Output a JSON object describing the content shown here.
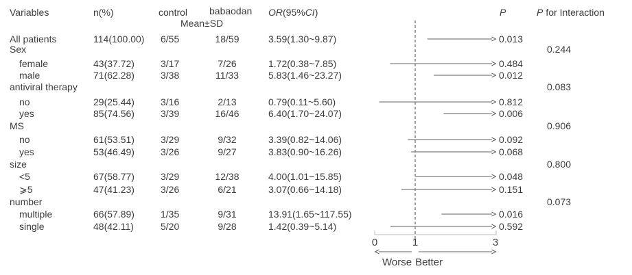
{
  "chart_data": {
    "type": "scatter",
    "subtype": "forest-plot",
    "columns": {
      "variables": "Variables",
      "n_pct": "n(%)",
      "control": "control",
      "babaodan": "babaodan",
      "mean_sd": "Mean±SD",
      "or_parts": {
        "or": "OR",
        "mid": "(95%",
        "ci": "CI",
        "close": ")"
      },
      "p": "P",
      "p_interaction_parts": {
        "p": "P",
        "rest": "for Interaction"
      }
    },
    "x_axis": {
      "tick_labels": [
        "0",
        "1",
        "3"
      ],
      "tick_values": [
        0,
        1,
        3
      ],
      "range": [
        0,
        3
      ],
      "reference_value": 1,
      "worse_label": "Worse",
      "better_label": "Better"
    },
    "colors": {
      "text": "#3c3c3c",
      "ci_line": "#7d7d7d",
      "arrow": "#5f5f5f",
      "reference_line": "#4a4a4a",
      "axis_line": "#b9b9b9"
    },
    "rows": [
      {
        "label": "All patients",
        "indent": false,
        "group": false,
        "n_pct": "114(100.00)",
        "control": "6/55",
        "babaodan": "18/59",
        "or_ci": "3.59(1.30~9.87)",
        "or": 3.59,
        "ci_low": 1.3,
        "ci_high": 9.87,
        "p": "0.013"
      },
      {
        "label": "Sex",
        "indent": false,
        "group": true,
        "p_interaction": "0.244"
      },
      {
        "label": "female",
        "indent": true,
        "group": false,
        "n_pct": "43(37.72)",
        "control": "3/17",
        "babaodan": "7/26",
        "or_ci": "1.72(0.38~7.85)",
        "or": 1.72,
        "ci_low": 0.38,
        "ci_high": 7.85,
        "p": "0.484"
      },
      {
        "label": "male",
        "indent": true,
        "group": false,
        "n_pct": "71(62.28)",
        "control": "3/38",
        "babaodan": "11/33",
        "or_ci": "5.83(1.46~23.27)",
        "or": 5.83,
        "ci_low": 1.46,
        "ci_high": 23.27,
        "p": "0.012"
      },
      {
        "label": "antiviral therapy",
        "indent": false,
        "group": true,
        "p_interaction": "0.083"
      },
      {
        "label": "no",
        "indent": true,
        "group": false,
        "n_pct": "29(25.44)",
        "control": "3/16",
        "babaodan": "2/13",
        "or_ci": "0.79(0.11~5.60)",
        "or": 0.79,
        "ci_low": 0.11,
        "ci_high": 5.6,
        "p": "0.812"
      },
      {
        "label": "yes",
        "indent": true,
        "group": false,
        "n_pct": "85(74.56)",
        "control": "3/39",
        "babaodan": "16/46",
        "or_ci": "6.40(1.70~24.07)",
        "or": 6.4,
        "ci_low": 1.7,
        "ci_high": 24.07,
        "p": "0.006"
      },
      {
        "label": "MS",
        "indent": false,
        "group": true,
        "p_interaction": "0.906"
      },
      {
        "label": "no",
        "indent": true,
        "group": false,
        "n_pct": "61(53.51)",
        "control": "3/29",
        "babaodan": "9/32",
        "or_ci": "3.39(0.82~14.06)",
        "or": 3.39,
        "ci_low": 0.82,
        "ci_high": 14.06,
        "p": "0.092"
      },
      {
        "label": "yes",
        "indent": true,
        "group": false,
        "n_pct": "53(46.49)",
        "control": "3/26",
        "babaodan": "9/27",
        "or_ci": "3.83(0.90~16.26)",
        "or": 3.83,
        "ci_low": 0.9,
        "ci_high": 16.26,
        "p": "0.068"
      },
      {
        "label": "size",
        "indent": false,
        "group": true,
        "p_interaction": "0.800"
      },
      {
        "label": "<5",
        "indent": true,
        "group": false,
        "n_pct": "67(58.77)",
        "control": "3/29",
        "babaodan": "12/38",
        "or_ci": "4.00(1.01~15.85)",
        "or": 4.0,
        "ci_low": 1.01,
        "ci_high": 15.85,
        "p": "0.048"
      },
      {
        "label": "⩾5",
        "indent": true,
        "group": false,
        "n_pct": "47(41.23)",
        "control": "3/26",
        "babaodan": "6/21",
        "or_ci": "3.07(0.66~14.18)",
        "or": 3.07,
        "ci_low": 0.66,
        "ci_high": 14.18,
        "p": "0.151"
      },
      {
        "label": "number",
        "indent": false,
        "group": true,
        "p_interaction": "0.073"
      },
      {
        "label": "multiple",
        "indent": true,
        "group": false,
        "n_pct": "66(57.89)",
        "control": "1/35",
        "babaodan": "9/31",
        "or_ci": "13.91(1.65~117.55)",
        "or": 13.91,
        "ci_low": 1.65,
        "ci_high": 117.55,
        "p": "0.016"
      },
      {
        "label": "single",
        "indent": true,
        "group": false,
        "n_pct": "48(42.11)",
        "control": "5/20",
        "babaodan": "9/28",
        "or_ci": "1.42(0.39~5.14)",
        "or": 1.42,
        "ci_low": 0.39,
        "ci_high": 5.14,
        "p": "0.592"
      }
    ]
  }
}
